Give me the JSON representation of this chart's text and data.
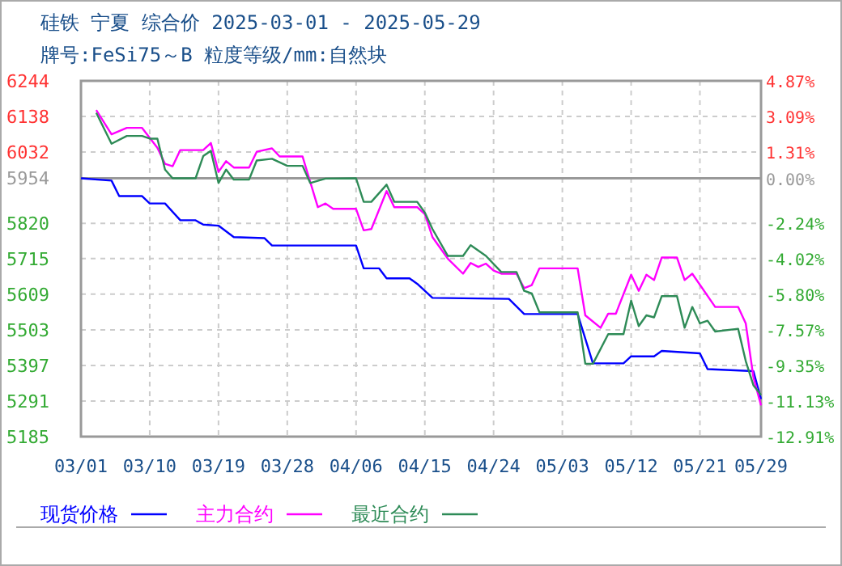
{
  "chart_data": {
    "type": "line",
    "title": "硅铁 宁夏 综合价 2025-03-01 - 2025-05-29",
    "subtitle": "牌号:FeSi75～B 粒度等级/mm:自然块",
    "xlim": [
      "2025-03-01",
      "2025-05-29"
    ],
    "xticks": [
      {
        "value": "2025-03-01",
        "label": "03/01"
      },
      {
        "value": "2025-03-10",
        "label": "03/10"
      },
      {
        "value": "2025-03-19",
        "label": "03/19"
      },
      {
        "value": "2025-03-28",
        "label": "03/28"
      },
      {
        "value": "2025-04-06",
        "label": "04/06"
      },
      {
        "value": "2025-04-15",
        "label": "04/15"
      },
      {
        "value": "2025-04-24",
        "label": "04/24"
      },
      {
        "value": "2025-05-03",
        "label": "05/03"
      },
      {
        "value": "2025-05-12",
        "label": "05/12"
      },
      {
        "value": "2025-05-21",
        "label": "05/21"
      },
      {
        "value": "2025-05-29",
        "label": "05/29"
      }
    ],
    "ylim": [
      5185,
      6244
    ],
    "yticks": [
      5185,
      5291,
      5397,
      5503,
      5609,
      5715,
      5820,
      5954,
      6032,
      6138,
      6244
    ],
    "y2lim": [
      -12.91,
      4.87
    ],
    "y2ticks": [
      {
        "value": -12.91,
        "label": "-12.91%"
      },
      {
        "value": -11.13,
        "label": "-11.13%"
      },
      {
        "value": -9.35,
        "label": "-9.35%"
      },
      {
        "value": -7.57,
        "label": "-7.57%"
      },
      {
        "value": -5.8,
        "label": "-5.80%"
      },
      {
        "value": -4.02,
        "label": "-4.02%"
      },
      {
        "value": -2.24,
        "label": "-2.24%"
      },
      {
        "value": 0,
        "label": "0.00%"
      },
      {
        "value": 1.31,
        "label": "1.31%"
      },
      {
        "value": 3.09,
        "label": "3.09%"
      },
      {
        "value": 4.87,
        "label": "4.87%"
      }
    ],
    "grid": true,
    "legend": "bottom",
    "ref_lines": [
      {
        "axis": "y",
        "value": 5954,
        "color": "#999999"
      }
    ],
    "series": [
      {
        "name": "现货价格",
        "color": "#0000ff",
        "x": [
          "2025-03-01",
          "2025-03-05",
          "2025-03-06",
          "2025-03-09",
          "2025-03-10",
          "2025-03-12",
          "2025-03-14",
          "2025-03-16",
          "2025-03-17",
          "2025-03-19",
          "2025-03-21",
          "2025-03-25",
          "2025-03-26",
          "2025-04-06",
          "2025-04-07",
          "2025-04-09",
          "2025-04-10",
          "2025-04-13",
          "2025-04-14",
          "2025-04-16",
          "2025-04-26",
          "2025-04-28",
          "2025-05-05",
          "2025-05-07",
          "2025-05-11",
          "2025-05-12",
          "2025-05-15",
          "2025-05-16",
          "2025-05-21",
          "2025-05-22",
          "2025-05-28",
          "2025-05-29"
        ],
        "values": [
          5954,
          5947,
          5901,
          5901,
          5879,
          5879,
          5829,
          5829,
          5816,
          5813,
          5779,
          5776,
          5754,
          5754,
          5686,
          5686,
          5656,
          5656,
          5640,
          5598,
          5595,
          5550,
          5550,
          5403,
          5403,
          5424,
          5424,
          5440,
          5433,
          5386,
          5380,
          5297
        ]
      },
      {
        "name": "主力合约",
        "color": "#ff00ff",
        "x": [
          "2025-03-03",
          "2025-03-05",
          "2025-03-07",
          "2025-03-09",
          "2025-03-11",
          "2025-03-12",
          "2025-03-13",
          "2025-03-14",
          "2025-03-17",
          "2025-03-18",
          "2025-03-19",
          "2025-03-20",
          "2025-03-21",
          "2025-03-23",
          "2025-03-24",
          "2025-03-26",
          "2025-03-27",
          "2025-03-30",
          "2025-04-01",
          "2025-04-02",
          "2025-04-03",
          "2025-04-06",
          "2025-04-07",
          "2025-04-08",
          "2025-04-10",
          "2025-04-11",
          "2025-04-14",
          "2025-04-15",
          "2025-04-16",
          "2025-04-18",
          "2025-04-20",
          "2025-04-21",
          "2025-04-22",
          "2025-04-23",
          "2025-04-24",
          "2025-04-25",
          "2025-04-27",
          "2025-04-28",
          "2025-04-29",
          "2025-04-30",
          "2025-05-05",
          "2025-05-06",
          "2025-05-08",
          "2025-05-09",
          "2025-05-10",
          "2025-05-12",
          "2025-05-13",
          "2025-05-14",
          "2025-05-15",
          "2025-05-16",
          "2025-05-18",
          "2025-05-19",
          "2025-05-20",
          "2025-05-23",
          "2025-05-26",
          "2025-05-27",
          "2025-05-28",
          "2025-05-29"
        ],
        "values": [
          6157,
          6085,
          6104,
          6104,
          6045,
          5997,
          5990,
          6038,
          6038,
          6059,
          5973,
          6005,
          5986,
          5986,
          6033,
          6043,
          6019,
          6019,
          5868,
          5879,
          5863,
          5863,
          5799,
          5803,
          5916,
          5868,
          5868,
          5847,
          5779,
          5715,
          5670,
          5702,
          5690,
          5700,
          5679,
          5670,
          5670,
          5627,
          5636,
          5686,
          5686,
          5546,
          5509,
          5551,
          5551,
          5667,
          5619,
          5667,
          5651,
          5718,
          5718,
          5651,
          5670,
          5571,
          5571,
          5522,
          5362,
          5278
        ]
      },
      {
        "name": "最近合约",
        "color": "#2e8b57",
        "x": [
          "2025-03-03",
          "2025-03-05",
          "2025-03-07",
          "2025-03-09",
          "2025-03-10",
          "2025-03-11",
          "2025-03-12",
          "2025-03-13",
          "2025-03-16",
          "2025-03-17",
          "2025-03-18",
          "2025-03-19",
          "2025-03-20",
          "2025-03-21",
          "2025-03-23",
          "2025-03-24",
          "2025-03-26",
          "2025-03-28",
          "2025-03-30",
          "2025-03-31",
          "2025-04-02",
          "2025-04-06",
          "2025-04-07",
          "2025-04-08",
          "2025-04-10",
          "2025-04-11",
          "2025-04-14",
          "2025-04-15",
          "2025-04-16",
          "2025-04-18",
          "2025-04-20",
          "2025-04-21",
          "2025-04-23",
          "2025-04-25",
          "2025-04-27",
          "2025-04-28",
          "2025-04-29",
          "2025-04-30",
          "2025-05-05",
          "2025-05-06",
          "2025-05-07",
          "2025-05-09",
          "2025-05-11",
          "2025-05-12",
          "2025-05-13",
          "2025-05-14",
          "2025-05-15",
          "2025-05-16",
          "2025-05-18",
          "2025-05-19",
          "2025-05-20",
          "2025-05-21",
          "2025-05-22",
          "2025-05-23",
          "2025-05-26",
          "2025-05-27",
          "2025-05-28",
          "2025-05-29"
        ],
        "values": [
          6149,
          6057,
          6080,
          6080,
          6072,
          6072,
          5980,
          5954,
          5954,
          6020,
          6036,
          5940,
          5980,
          5950,
          5950,
          6007,
          6012,
          5991,
          5991,
          5940,
          5953,
          5954,
          5884,
          5884,
          5935,
          5884,
          5884,
          5852,
          5803,
          5723,
          5723,
          5755,
          5723,
          5675,
          5675,
          5619,
          5611,
          5555,
          5555,
          5402,
          5402,
          5490,
          5490,
          5590,
          5514,
          5546,
          5540,
          5603,
          5603,
          5509,
          5571,
          5522,
          5530,
          5498,
          5506,
          5410,
          5338,
          5309
        ]
      }
    ]
  }
}
